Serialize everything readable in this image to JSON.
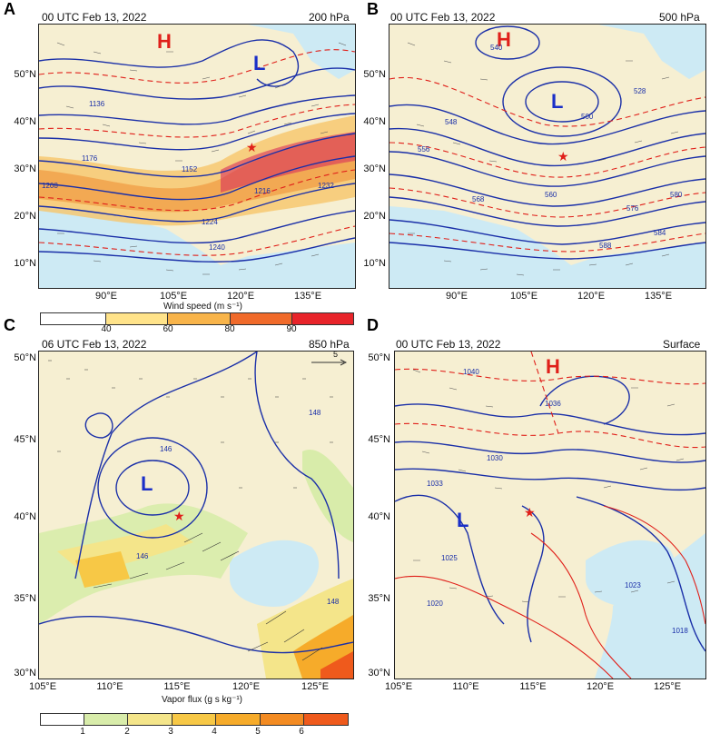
{
  "panels": {
    "a": {
      "letter": "A",
      "time": "00 UTC Feb 13, 2022",
      "level": "200 hPa",
      "lats": [
        "50°N",
        "40°N",
        "30°N",
        "20°N",
        "10°N"
      ],
      "lons": [
        "90°E",
        "105°E",
        "120°E",
        "135°E"
      ],
      "H": "H",
      "L": "L"
    },
    "b": {
      "letter": "B",
      "time": "00 UTC Feb 13, 2022",
      "level": "500 hPa",
      "lats": [
        "50°N",
        "40°N",
        "30°N",
        "20°N",
        "10°N"
      ],
      "lons": [
        "90°E",
        "105°E",
        "120°E",
        "135°E"
      ],
      "H": "H",
      "L": "L"
    },
    "c": {
      "letter": "C",
      "time": "06 UTC Feb 13, 2022",
      "level": "850 hPa",
      "lats": [
        "50°N",
        "45°N",
        "40°N",
        "35°N",
        "30°N"
      ],
      "lons": [
        "105°E",
        "110°E",
        "115°E",
        "120°E",
        "125°E"
      ],
      "L": "L",
      "vector_ref": "5"
    },
    "d": {
      "letter": "D",
      "time": "00 UTC Feb 13, 2022",
      "level": "Surface",
      "lats": [
        "50°N",
        "45°N",
        "40°N",
        "35°N",
        "30°N"
      ],
      "lons": [
        "105°E",
        "110°E",
        "115°E",
        "120°E",
        "125°E"
      ],
      "H": "H",
      "L": "L"
    }
  },
  "colorbar_wind": {
    "title": "Wind speed (m s⁻¹)",
    "labels": [
      "40",
      "60",
      "80",
      "90"
    ],
    "colors": [
      "#ffffff",
      "#ffe38a",
      "#f8b44a",
      "#f06a2a",
      "#e8242a"
    ]
  },
  "colorbar_vapor": {
    "title": "Vapor flux (g s kg⁻¹)",
    "labels": [
      "1",
      "2",
      "3",
      "4",
      "5",
      "6"
    ],
    "colors": [
      "#ffffff",
      "#d8ecaa",
      "#f4e58a",
      "#f7c846",
      "#f6ab2a",
      "#f38b22",
      "#ef5a1c"
    ]
  },
  "contour_labels": {
    "a": [
      "1136",
      "1152",
      "1176",
      "1208",
      "1216",
      "1224",
      "1232",
      "1240"
    ],
    "b": [
      "500",
      "528",
      "540",
      "548",
      "556",
      "560",
      "568",
      "576",
      "580",
      "584",
      "588"
    ],
    "c": [
      "146",
      "148",
      "146",
      "148"
    ],
    "d": [
      "1040",
      "1036",
      "1033",
      "1030",
      "1025",
      "1020",
      "1023",
      "1018"
    ]
  }
}
